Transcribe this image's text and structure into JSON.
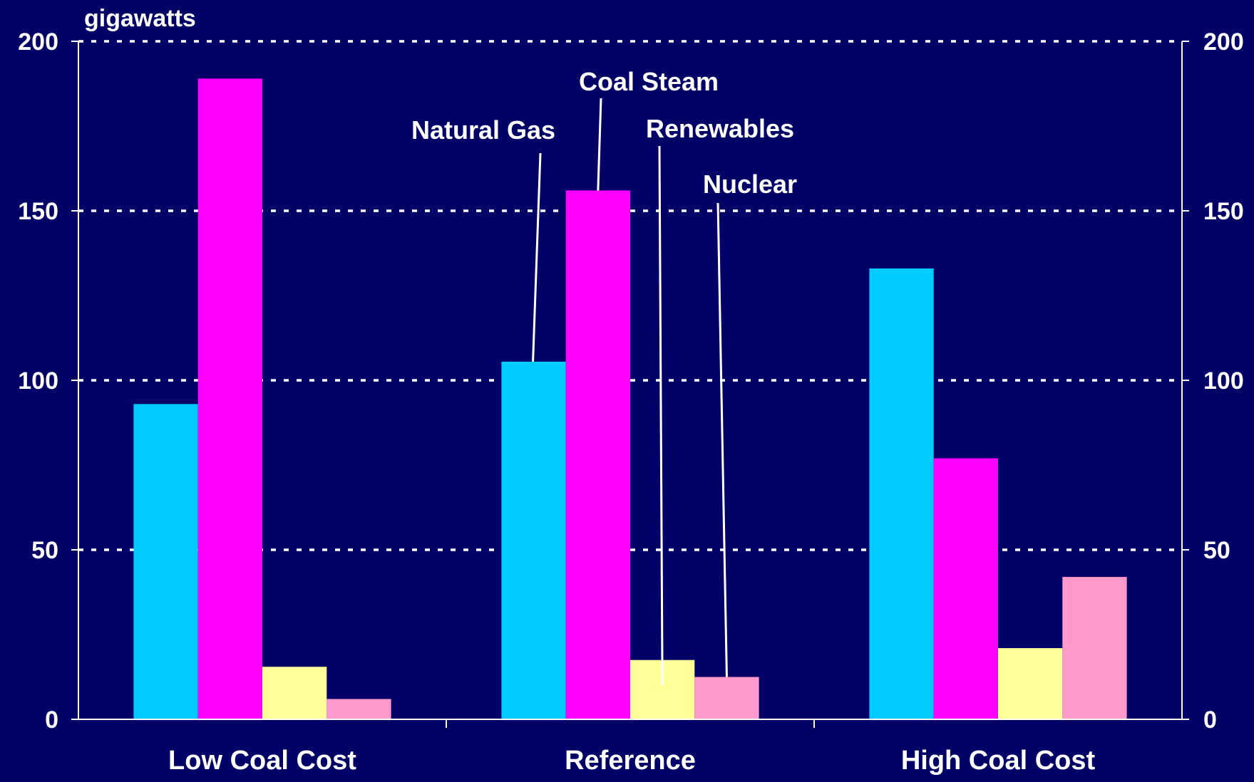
{
  "chart_data": {
    "type": "bar",
    "title": "",
    "ylabel": "gigawatts",
    "xlabel": "",
    "ylim": [
      0,
      200
    ],
    "yticks": [
      0,
      50,
      100,
      150,
      200
    ],
    "grid": true,
    "categories": [
      "Low Coal Cost",
      "Reference",
      "High Coal Cost"
    ],
    "series": [
      {
        "name": "Natural Gas",
        "color": "#00ccff",
        "values": [
          93,
          105.5,
          133
        ]
      },
      {
        "name": "Coal Steam",
        "color": "#ff00ff",
        "values": [
          189,
          156,
          77
        ]
      },
      {
        "name": "Renewables",
        "color": "#ffff99",
        "values": [
          15.5,
          17.5,
          21
        ]
      },
      {
        "name": "Nuclear",
        "color": "#ff99cc",
        "values": [
          6,
          12.5,
          42
        ]
      }
    ],
    "annotations": [
      {
        "text": "Natural Gas",
        "category": "Reference",
        "series": "Natural Gas"
      },
      {
        "text": "Coal Steam",
        "category": "Reference",
        "series": "Coal Steam"
      },
      {
        "text": "Renewables",
        "category": "Reference",
        "series": "Renewables"
      },
      {
        "text": "Nuclear",
        "category": "Reference",
        "series": "Nuclear"
      }
    ],
    "colors": {
      "background": "#000066",
      "text": "#ffffff",
      "grid": "#ffffff"
    }
  }
}
